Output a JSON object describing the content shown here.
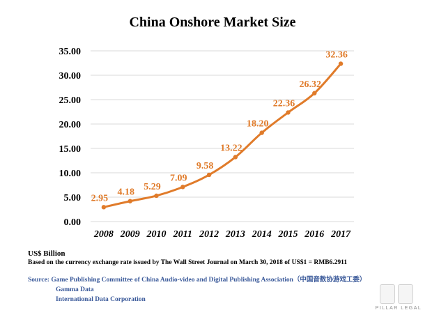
{
  "chart_data": {
    "type": "line",
    "title": "China Onshore Market Size",
    "categories": [
      "2008",
      "2009",
      "2010",
      "2011",
      "2012",
      "2013",
      "2014",
      "2015",
      "2016",
      "2017"
    ],
    "series": [
      {
        "values": [
          2.95,
          4.18,
          5.29,
          7.09,
          9.58,
          13.22,
          18.2,
          22.36,
          26.32,
          32.36
        ],
        "labels": [
          "2.95",
          "4.18",
          "5.29",
          "7.09",
          "9.58",
          "13.22",
          "18.20",
          "22.36",
          "26.32",
          "32.36"
        ],
        "color": "#e07b2a"
      }
    ],
    "ylim": [
      0,
      35
    ],
    "yticks": [
      "0.00",
      "5.00",
      "10.00",
      "15.00",
      "20.00",
      "25.00",
      "30.00",
      "35.00"
    ],
    "grid": true,
    "xlabel": "",
    "ylabel": ""
  },
  "notes": {
    "unit": "US$ Billion",
    "basis": "Based on the currency exchange rate issued by The Wall Street Journal on March 30, 2018 of US$1 =  RMB6.2911"
  },
  "sources": {
    "line1": "Source: Game Publishing Committee of China Audio-video and Digital Publishing Association（中国音数协游戏工委）",
    "line2": "Gamma Data",
    "line3": "International Data Corporation"
  },
  "logo": {
    "text": "PILLAR LEGAL"
  },
  "colors": {
    "line": "#e07b2a",
    "grid": "#d9d9d9",
    "source": "#3b5a9a"
  }
}
